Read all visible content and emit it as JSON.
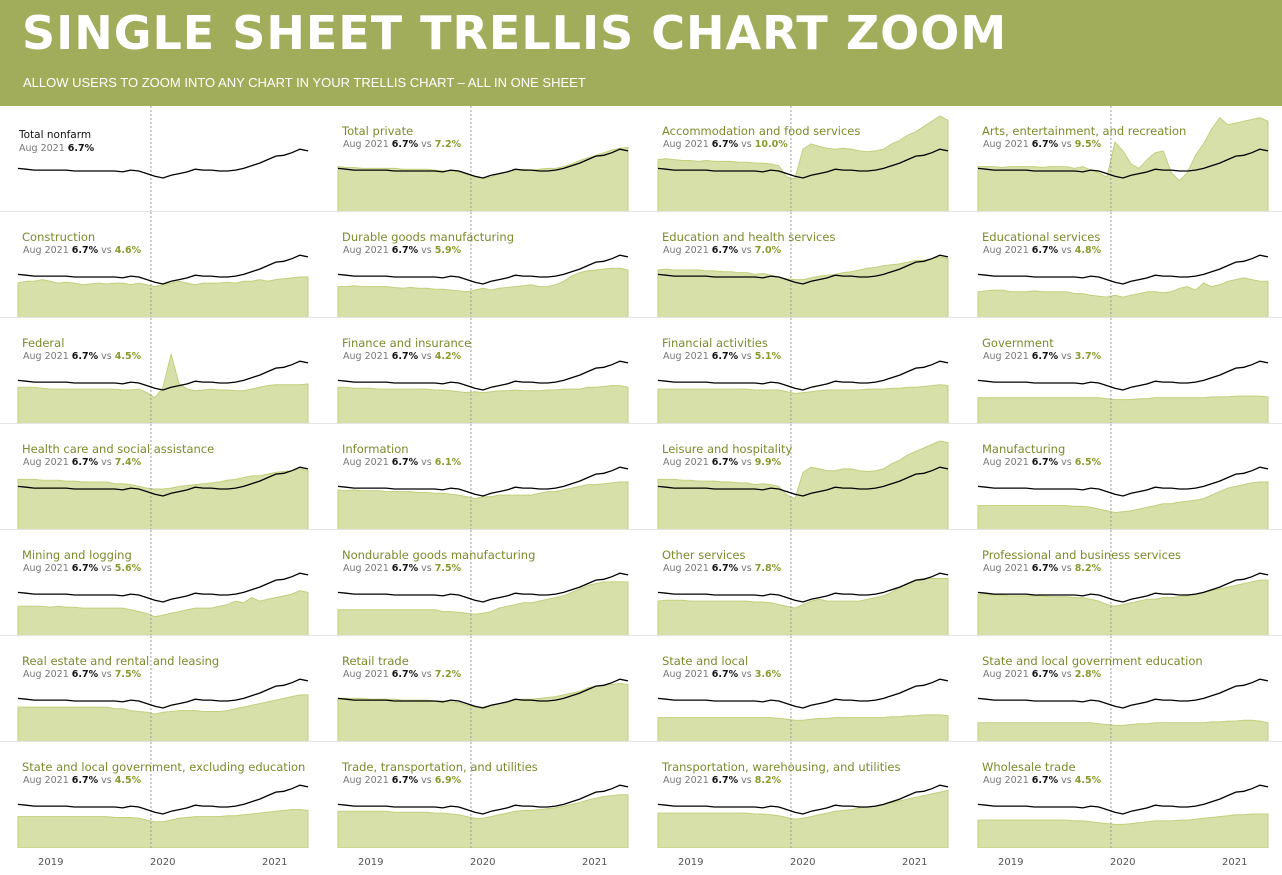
{
  "header": {
    "title": "SINGLE SHEET TRELLIS CHART ZOOM",
    "subtitle": "ALLOW USERS TO ZOOM INTO ANY CHART IN YOUR TRELLIS CHART – ALL IN ONE SHEET"
  },
  "colors": {
    "header_bg": "#a1ad5a",
    "area_fill": "#d8e0aa",
    "area_stroke": "#c2cf7c",
    "line": "#000000",
    "title_text": "#7d8a2b"
  },
  "chart_data": {
    "type": "area",
    "layout": "trellis small multiples (7 rows x 4 columns); black line = Total nonfarm reference, green area = industry",
    "x_axis_labels": [
      "2019",
      "2020",
      "2021"
    ],
    "reference_line": "dotted vertical line near Feb 2020",
    "period_label": "Aug 2021",
    "baseline": {
      "name": "Total nonfarm",
      "value": "6.7%",
      "values": [
        50,
        49,
        48,
        48,
        48,
        48,
        48,
        47,
        47,
        47,
        47,
        47,
        47,
        46,
        48,
        47,
        44,
        41,
        39,
        42,
        44,
        46,
        49,
        48,
        48,
        47,
        47,
        48,
        50,
        53,
        56,
        60,
        64,
        65,
        68,
        72,
        70
      ]
    },
    "panels": [
      {
        "name": "Total nonfarm",
        "label": "Aug 2021",
        "value": "6.7%",
        "compare": ""
      },
      {
        "name": "Total private",
        "label": "Aug 2021",
        "value": "6.7%",
        "compare": "7.2%",
        "values": [
          52,
          51,
          51,
          50,
          50,
          50,
          50,
          50,
          49,
          49,
          49,
          49,
          48,
          47,
          47,
          46,
          43,
          40,
          38,
          40,
          44,
          46,
          48,
          49,
          48,
          49,
          50,
          50,
          52,
          55,
          59,
          62,
          65,
          68,
          71,
          73,
          74
        ]
      },
      {
        "name": "Accommodation and food services",
        "label": "Aug 2021",
        "value": "6.7%",
        "compare": "10.0%",
        "values": [
          60,
          61,
          60,
          59,
          59,
          58,
          59,
          58,
          58,
          58,
          57,
          57,
          56,
          56,
          55,
          53,
          40,
          38,
          72,
          78,
          75,
          73,
          72,
          73,
          72,
          70,
          69,
          70,
          72,
          78,
          82,
          88,
          92,
          98,
          104,
          110,
          105
        ]
      },
      {
        "name": "Arts, entertainment, and recreation",
        "label": "Aug 2021",
        "value": "6.7%",
        "compare": "9.5%",
        "values": [
          52,
          52,
          52,
          51,
          52,
          52,
          52,
          52,
          51,
          52,
          52,
          52,
          50,
          52,
          48,
          45,
          40,
          80,
          70,
          55,
          50,
          60,
          68,
          70,
          45,
          36,
          45,
          65,
          78,
          95,
          108,
          100,
          102,
          104,
          106,
          108,
          104
        ]
      },
      {
        "name": "Construction",
        "label": "Aug 2021",
        "value": "6.7%",
        "compare": "4.6%",
        "values": [
          40,
          42,
          42,
          44,
          42,
          40,
          41,
          40,
          38,
          39,
          40,
          39,
          40,
          40,
          38,
          40,
          38,
          36,
          38,
          40,
          42,
          40,
          38,
          40,
          40,
          40,
          41,
          40,
          42,
          42,
          44,
          42,
          44,
          45,
          46,
          47,
          47
        ]
      },
      {
        "name": "Durable goods manufacturing",
        "label": "Aug 2021",
        "value": "6.7%",
        "compare": "5.9%",
        "values": [
          36,
          36,
          37,
          36,
          36,
          36,
          36,
          35,
          34,
          35,
          34,
          34,
          33,
          33,
          32,
          31,
          30,
          32,
          34,
          32,
          34,
          35,
          36,
          37,
          38,
          36,
          36,
          38,
          42,
          48,
          52,
          54,
          55,
          56,
          57,
          57,
          55
        ]
      },
      {
        "name": "Education and health services",
        "label": "Aug 2021",
        "value": "6.7%",
        "compare": "7.0%",
        "values": [
          55,
          56,
          55,
          55,
          55,
          55,
          54,
          54,
          53,
          53,
          52,
          52,
          50,
          51,
          49,
          47,
          45,
          44,
          44,
          46,
          48,
          49,
          50,
          52,
          53,
          55,
          57,
          58,
          60,
          61,
          62,
          64,
          66,
          66,
          68,
          70,
          68
        ]
      },
      {
        "name": "Educational services",
        "label": "Aug 2021",
        "value": "6.7%",
        "compare": "4.8%",
        "values": [
          30,
          31,
          32,
          32,
          30,
          30,
          30,
          31,
          30,
          30,
          30,
          30,
          28,
          28,
          26,
          25,
          24,
          26,
          24,
          26,
          28,
          30,
          30,
          29,
          30,
          34,
          36,
          32,
          40,
          36,
          38,
          42,
          44,
          46,
          44,
          42,
          42
        ]
      },
      {
        "name": "Federal",
        "label": "Aug 2021",
        "value": "6.7%",
        "compare": "4.5%",
        "values": [
          42,
          42,
          42,
          41,
          40,
          40,
          40,
          40,
          40,
          40,
          40,
          40,
          40,
          39,
          39,
          40,
          36,
          30,
          42,
          80,
          46,
          40,
          38,
          39,
          40,
          39,
          39,
          38,
          38,
          40,
          42,
          44,
          45,
          45,
          45,
          45,
          46
        ]
      },
      {
        "name": "Finance and insurance",
        "label": "Aug 2021",
        "value": "6.7%",
        "compare": "4.2%",
        "values": [
          42,
          42,
          41,
          41,
          41,
          40,
          40,
          40,
          40,
          40,
          40,
          40,
          39,
          39,
          38,
          37,
          36,
          37,
          36,
          37,
          38,
          38,
          39,
          38,
          38,
          38,
          39,
          39,
          40,
          40,
          40,
          42,
          42,
          43,
          44,
          44,
          42
        ]
      },
      {
        "name": "Financial activities",
        "label": "Aug 2021",
        "value": "6.7%",
        "compare": "5.1%",
        "values": [
          40,
          40,
          40,
          40,
          40,
          40,
          40,
          40,
          40,
          40,
          40,
          40,
          39,
          39,
          39,
          39,
          37,
          35,
          36,
          37,
          38,
          39,
          39,
          39,
          39,
          39,
          40,
          40,
          40,
          41,
          41,
          42,
          42,
          43,
          44,
          45,
          44
        ]
      },
      {
        "name": "Government",
        "label": "Aug 2021",
        "value": "6.7%",
        "compare": "3.7%",
        "values": [
          30,
          30,
          30,
          30,
          30,
          30,
          30,
          30,
          30,
          30,
          30,
          30,
          30,
          30,
          30,
          30,
          29,
          28,
          28,
          28,
          29,
          29,
          30,
          30,
          30,
          30,
          30,
          30,
          30,
          31,
          31,
          31,
          32,
          32,
          32,
          32,
          31
        ]
      },
      {
        "name": "Health care and social assistance",
        "label": "Aug 2021",
        "value": "6.7%",
        "compare": "7.4%",
        "values": [
          58,
          58,
          58,
          57,
          57,
          57,
          56,
          56,
          55,
          55,
          55,
          55,
          53,
          53,
          52,
          50,
          48,
          47,
          47,
          48,
          50,
          51,
          52,
          53,
          54,
          55,
          57,
          58,
          60,
          62,
          62,
          64,
          66,
          67,
          68,
          70,
          68
        ]
      },
      {
        "name": "Information",
        "label": "Aug 2021",
        "value": "6.7%",
        "compare": "6.1%",
        "values": [
          46,
          45,
          46,
          45,
          45,
          45,
          44,
          44,
          44,
          44,
          43,
          43,
          42,
          42,
          41,
          40,
          38,
          36,
          38,
          38,
          40,
          40,
          40,
          40,
          40,
          42,
          44,
          44,
          46,
          48,
          50,
          52,
          52,
          53,
          54,
          55,
          55
        ]
      },
      {
        "name": "Leisure and hospitality",
        "label": "Aug 2021",
        "value": "6.7%",
        "compare": "9.9%",
        "values": [
          58,
          58,
          58,
          57,
          57,
          56,
          56,
          56,
          55,
          55,
          54,
          54,
          52,
          53,
          52,
          50,
          40,
          36,
          66,
          72,
          70,
          68,
          68,
          70,
          70,
          68,
          67,
          68,
          70,
          76,
          80,
          86,
          90,
          94,
          98,
          102,
          100
        ]
      },
      {
        "name": "Manufacturing",
        "label": "Aug 2021",
        "value": "6.7%",
        "compare": "6.5%",
        "values": [
          28,
          28,
          28,
          28,
          28,
          28,
          28,
          28,
          28,
          28,
          28,
          28,
          27,
          27,
          26,
          24,
          22,
          20,
          21,
          22,
          24,
          26,
          28,
          30,
          30,
          32,
          33,
          34,
          36,
          40,
          44,
          48,
          50,
          52,
          54,
          55,
          55
        ]
      },
      {
        "name": "Mining and logging",
        "label": "Aug 2021",
        "value": "6.7%",
        "compare": "5.6%",
        "values": [
          34,
          34,
          34,
          34,
          33,
          34,
          33,
          33,
          32,
          32,
          32,
          32,
          32,
          32,
          30,
          28,
          26,
          22,
          24,
          26,
          28,
          30,
          32,
          32,
          32,
          34,
          36,
          40,
          38,
          44,
          40,
          42,
          44,
          46,
          48,
          52,
          50
        ]
      },
      {
        "name": "Nondurable goods manufacturing",
        "label": "Aug 2021",
        "value": "6.7%",
        "compare": "7.5%",
        "values": [
          30,
          30,
          30,
          30,
          30,
          30,
          30,
          30,
          30,
          30,
          30,
          30,
          30,
          28,
          28,
          27,
          26,
          25,
          26,
          28,
          32,
          34,
          36,
          38,
          38,
          40,
          42,
          44,
          46,
          50,
          54,
          58,
          60,
          62,
          62,
          62,
          62
        ]
      },
      {
        "name": "Other services",
        "label": "Aug 2021",
        "value": "6.7%",
        "compare": "7.8%",
        "values": [
          40,
          41,
          41,
          41,
          40,
          40,
          40,
          40,
          40,
          40,
          40,
          40,
          39,
          39,
          38,
          36,
          34,
          32,
          36,
          40,
          42,
          40,
          40,
          40,
          40,
          40,
          42,
          44,
          46,
          50,
          56,
          60,
          64,
          66,
          66,
          66,
          66
        ]
      },
      {
        "name": "Professional and business services",
        "label": "Aug 2021",
        "value": "6.7%",
        "compare": "8.2%",
        "values": [
          48,
          48,
          47,
          47,
          46,
          46,
          46,
          46,
          46,
          45,
          45,
          45,
          44,
          44,
          42,
          40,
          36,
          34,
          36,
          38,
          40,
          42,
          42,
          44,
          44,
          45,
          46,
          48,
          50,
          52,
          54,
          56,
          58,
          60,
          62,
          64,
          64
        ]
      },
      {
        "name": "Real estate and rental and leasing",
        "label": "Aug 2021",
        "value": "6.7%",
        "compare": "7.5%",
        "values": [
          40,
          40,
          40,
          40,
          40,
          40,
          40,
          40,
          40,
          40,
          40,
          40,
          38,
          38,
          36,
          35,
          34,
          32,
          34,
          35,
          36,
          36,
          36,
          35,
          35,
          35,
          36,
          38,
          40,
          42,
          44,
          46,
          48,
          50,
          52,
          54,
          54
        ]
      },
      {
        "name": "Retail trade",
        "label": "Aug 2021",
        "value": "6.7%",
        "compare": "7.2%",
        "values": [
          50,
          50,
          50,
          50,
          49,
          49,
          49,
          49,
          48,
          48,
          48,
          48,
          47,
          47,
          46,
          45,
          42,
          40,
          40,
          42,
          44,
          46,
          48,
          49,
          49,
          50,
          51,
          52,
          54,
          56,
          58,
          62,
          64,
          65,
          66,
          67,
          66
        ]
      },
      {
        "name": "State and local",
        "label": "Aug 2021",
        "value": "6.7%",
        "compare": "3.6%",
        "values": [
          28,
          28,
          28,
          28,
          28,
          28,
          28,
          28,
          28,
          28,
          28,
          28,
          28,
          28,
          28,
          27,
          26,
          25,
          25,
          26,
          27,
          27,
          28,
          28,
          28,
          28,
          28,
          28,
          28,
          29,
          29,
          30,
          30,
          31,
          31,
          31,
          30
        ]
      },
      {
        "name": "State and local government education",
        "label": "Aug 2021",
        "value": "6.7%",
        "compare": "2.8%",
        "values": [
          22,
          22,
          22,
          22,
          22,
          22,
          22,
          22,
          22,
          22,
          22,
          22,
          22,
          22,
          22,
          21,
          20,
          19,
          19,
          20,
          21,
          21,
          22,
          22,
          22,
          22,
          22,
          22,
          22,
          23,
          23,
          24,
          24,
          25,
          25,
          24,
          22
        ]
      },
      {
        "name": "State and local government, excluding education",
        "label": "Aug 2021",
        "value": "6.7%",
        "compare": "4.5%",
        "values": [
          36,
          36,
          36,
          36,
          36,
          36,
          36,
          36,
          36,
          36,
          36,
          36,
          35,
          35,
          35,
          34,
          32,
          30,
          30,
          32,
          34,
          35,
          36,
          36,
          36,
          36,
          37,
          37,
          38,
          39,
          40,
          41,
          42,
          43,
          44,
          44,
          43
        ]
      },
      {
        "name": "Trade, transportation, and utilities",
        "label": "Aug 2021",
        "value": "6.7%",
        "compare": "6.9%",
        "values": [
          42,
          42,
          42,
          42,
          42,
          42,
          42,
          41,
          41,
          41,
          41,
          41,
          40,
          40,
          39,
          38,
          36,
          34,
          34,
          36,
          38,
          40,
          42,
          43,
          43,
          44,
          45,
          46,
          48,
          50,
          52,
          55,
          57,
          59,
          60,
          61,
          61
        ]
      },
      {
        "name": "Transportation, warehousing, and utilities",
        "label": "Aug 2021",
        "value": "6.7%",
        "compare": "8.2%",
        "values": [
          40,
          40,
          40,
          40,
          40,
          40,
          40,
          40,
          40,
          40,
          40,
          40,
          39,
          39,
          38,
          37,
          35,
          33,
          34,
          36,
          38,
          40,
          42,
          43,
          44,
          46,
          47,
          48,
          50,
          52,
          54,
          56,
          58,
          60,
          62,
          64,
          66
        ]
      },
      {
        "name": "Wholesale trade",
        "label": "Aug 2021",
        "value": "6.7%",
        "compare": "4.5%",
        "values": [
          32,
          32,
          32,
          32,
          32,
          32,
          32,
          32,
          32,
          32,
          32,
          32,
          31,
          31,
          30,
          29,
          28,
          27,
          27,
          28,
          29,
          30,
          31,
          31,
          31,
          32,
          32,
          33,
          34,
          35,
          36,
          37,
          38,
          38,
          39,
          39,
          39
        ]
      }
    ]
  }
}
